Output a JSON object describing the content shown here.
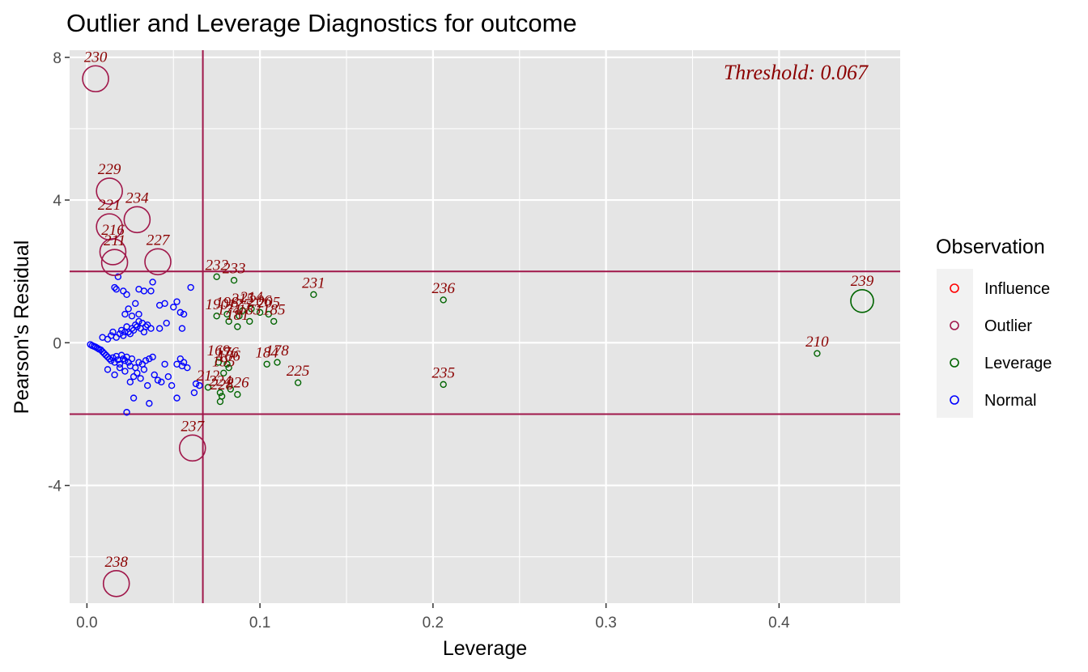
{
  "chart_data": {
    "type": "scatter",
    "title": "Outlier and Leverage Diagnostics for outcome",
    "xlabel": "Leverage",
    "ylabel": "Pearson's Residual",
    "xlim": [
      -0.01,
      0.47
    ],
    "ylim": [
      -7.3,
      8.2
    ],
    "x_ticks": [
      0.0,
      0.1,
      0.2,
      0.3,
      0.4
    ],
    "x_tick_labels": [
      "0.0",
      "0.1",
      "0.2",
      "0.3",
      "0.4"
    ],
    "y_ticks": [
      -4,
      0,
      4,
      8
    ],
    "y_tick_labels": [
      "-4",
      "0",
      "4",
      "8"
    ],
    "grid": true,
    "threshold": {
      "leverage": 0.067,
      "residual": 2,
      "label": "Threshold: 0.067"
    },
    "legend": {
      "title": "Observation",
      "placement": "right",
      "entries": [
        {
          "name": "Influence",
          "color": "#ff0000"
        },
        {
          "name": "Outlier",
          "color": "#a0174a"
        },
        {
          "name": "Leverage",
          "color": "#006400"
        },
        {
          "name": "Normal",
          "color": "#0000ff"
        }
      ]
    },
    "colors": {
      "panel": "#e5e5e5",
      "grid": "#ffffff",
      "threshold_line": "#a0174a",
      "label": "#8b0000"
    },
    "series": [
      {
        "name": "Outlier",
        "points": [
          {
            "x": 0.005,
            "y": 7.4,
            "label": "230"
          },
          {
            "x": 0.013,
            "y": 4.25,
            "label": "229"
          },
          {
            "x": 0.013,
            "y": 3.25,
            "label": "221"
          },
          {
            "x": 0.029,
            "y": 3.45,
            "label": "234"
          },
          {
            "x": 0.015,
            "y": 2.55,
            "label": "216"
          },
          {
            "x": 0.016,
            "y": 2.25,
            "label": "211"
          },
          {
            "x": 0.041,
            "y": 2.27,
            "label": "227"
          },
          {
            "x": 0.061,
            "y": -2.95,
            "label": "237"
          },
          {
            "x": 0.017,
            "y": -6.75,
            "label": "238"
          }
        ]
      },
      {
        "name": "Leverage",
        "points": [
          {
            "x": 0.075,
            "y": 1.85,
            "label": "232"
          },
          {
            "x": 0.085,
            "y": 1.75,
            "label": "233"
          },
          {
            "x": 0.131,
            "y": 1.35,
            "label": "231"
          },
          {
            "x": 0.206,
            "y": 1.2,
            "label": "236"
          },
          {
            "x": 0.448,
            "y": 1.17,
            "label": "239"
          },
          {
            "x": 0.075,
            "y": 0.75,
            "label": "190"
          },
          {
            "x": 0.081,
            "y": 0.8,
            "label": "198"
          },
          {
            "x": 0.088,
            "y": 0.75,
            "label": "175"
          },
          {
            "x": 0.09,
            "y": 0.9,
            "label": "215"
          },
          {
            "x": 0.095,
            "y": 0.95,
            "label": "214"
          },
          {
            "x": 0.1,
            "y": 0.85,
            "label": "206"
          },
          {
            "x": 0.105,
            "y": 0.8,
            "label": "205"
          },
          {
            "x": 0.108,
            "y": 0.6,
            "label": "185"
          },
          {
            "x": 0.082,
            "y": 0.6,
            "label": "174"
          },
          {
            "x": 0.087,
            "y": 0.45,
            "label": "181"
          },
          {
            "x": 0.094,
            "y": 0.6,
            "label": "183"
          },
          {
            "x": 0.422,
            "y": -0.3,
            "label": "210"
          },
          {
            "x": 0.076,
            "y": -0.55,
            "label": "169"
          },
          {
            "x": 0.081,
            "y": -0.6,
            "label": "176"
          },
          {
            "x": 0.079,
            "y": -0.85,
            "label": "195"
          },
          {
            "x": 0.082,
            "y": -0.7,
            "label": "186"
          },
          {
            "x": 0.104,
            "y": -0.6,
            "label": "184"
          },
          {
            "x": 0.11,
            "y": -0.55,
            "label": "178"
          },
          {
            "x": 0.122,
            "y": -1.12,
            "label": "225"
          },
          {
            "x": 0.206,
            "y": -1.17,
            "label": "235"
          },
          {
            "x": 0.07,
            "y": -1.25,
            "label": "212"
          },
          {
            "x": 0.077,
            "y": -1.4,
            "label": "224"
          },
          {
            "x": 0.078,
            "y": -1.5,
            "label": "228"
          },
          {
            "x": 0.087,
            "y": -1.45,
            "label": "226"
          },
          {
            "x": 0.077,
            "y": -1.65,
            "label": ""
          },
          {
            "x": 0.083,
            "y": -1.3,
            "label": ""
          }
        ]
      },
      {
        "name": "Normal",
        "points": [
          {
            "x": 0.002,
            "y": -0.05
          },
          {
            "x": 0.003,
            "y": -0.08
          },
          {
            "x": 0.004,
            "y": -0.1
          },
          {
            "x": 0.005,
            "y": -0.12
          },
          {
            "x": 0.006,
            "y": -0.15
          },
          {
            "x": 0.007,
            "y": -0.18
          },
          {
            "x": 0.008,
            "y": -0.2
          },
          {
            "x": 0.009,
            "y": -0.25
          },
          {
            "x": 0.01,
            "y": -0.3
          },
          {
            "x": 0.011,
            "y": -0.35
          },
          {
            "x": 0.012,
            "y": -0.4
          },
          {
            "x": 0.013,
            "y": -0.45
          },
          {
            "x": 0.014,
            "y": -0.5
          },
          {
            "x": 0.015,
            "y": -0.42
          },
          {
            "x": 0.016,
            "y": -0.55
          },
          {
            "x": 0.017,
            "y": -0.38
          },
          {
            "x": 0.018,
            "y": -0.48
          },
          {
            "x": 0.019,
            "y": -0.6
          },
          {
            "x": 0.02,
            "y": -0.35
          },
          {
            "x": 0.021,
            "y": -0.45
          },
          {
            "x": 0.022,
            "y": -0.5
          },
          {
            "x": 0.023,
            "y": -0.4
          },
          {
            "x": 0.024,
            "y": -0.55
          },
          {
            "x": 0.025,
            "y": -0.65
          },
          {
            "x": 0.026,
            "y": -0.45
          },
          {
            "x": 0.028,
            "y": -0.7
          },
          {
            "x": 0.03,
            "y": -0.55
          },
          {
            "x": 0.032,
            "y": -0.6
          },
          {
            "x": 0.034,
            "y": -0.5
          },
          {
            "x": 0.036,
            "y": -0.45
          },
          {
            "x": 0.038,
            "y": -0.4
          },
          {
            "x": 0.012,
            "y": -0.75
          },
          {
            "x": 0.016,
            "y": -0.9
          },
          {
            "x": 0.019,
            "y": -0.7
          },
          {
            "x": 0.022,
            "y": -0.8
          },
          {
            "x": 0.025,
            "y": -1.1
          },
          {
            "x": 0.027,
            "y": -0.95
          },
          {
            "x": 0.029,
            "y": -0.85
          },
          {
            "x": 0.031,
            "y": -1.0
          },
          {
            "x": 0.033,
            "y": -0.75
          },
          {
            "x": 0.035,
            "y": -1.2
          },
          {
            "x": 0.039,
            "y": -0.9
          },
          {
            "x": 0.041,
            "y": -1.05
          },
          {
            "x": 0.043,
            "y": -1.1
          },
          {
            "x": 0.045,
            "y": -0.6
          },
          {
            "x": 0.047,
            "y": -0.95
          },
          {
            "x": 0.049,
            "y": -1.2
          },
          {
            "x": 0.052,
            "y": -0.6
          },
          {
            "x": 0.054,
            "y": -0.45
          },
          {
            "x": 0.055,
            "y": -0.65
          },
          {
            "x": 0.056,
            "y": -0.55
          },
          {
            "x": 0.058,
            "y": -0.7
          },
          {
            "x": 0.063,
            "y": -1.15
          },
          {
            "x": 0.065,
            "y": -1.2
          },
          {
            "x": 0.062,
            "y": -1.4
          },
          {
            "x": 0.052,
            "y": -1.55
          },
          {
            "x": 0.036,
            "y": -1.7
          },
          {
            "x": 0.027,
            "y": -1.55
          },
          {
            "x": 0.023,
            "y": -1.95
          },
          {
            "x": 0.009,
            "y": 0.15
          },
          {
            "x": 0.012,
            "y": 0.1
          },
          {
            "x": 0.014,
            "y": 0.2
          },
          {
            "x": 0.015,
            "y": 0.3
          },
          {
            "x": 0.017,
            "y": 0.15
          },
          {
            "x": 0.019,
            "y": 0.25
          },
          {
            "x": 0.02,
            "y": 0.35
          },
          {
            "x": 0.021,
            "y": 0.2
          },
          {
            "x": 0.022,
            "y": 0.3
          },
          {
            "x": 0.023,
            "y": 0.45
          },
          {
            "x": 0.024,
            "y": 0.3
          },
          {
            "x": 0.025,
            "y": 0.25
          },
          {
            "x": 0.026,
            "y": 0.4
          },
          {
            "x": 0.027,
            "y": 0.35
          },
          {
            "x": 0.028,
            "y": 0.5
          },
          {
            "x": 0.029,
            "y": 0.45
          },
          {
            "x": 0.03,
            "y": 0.6
          },
          {
            "x": 0.031,
            "y": 0.4
          },
          {
            "x": 0.032,
            "y": 0.55
          },
          {
            "x": 0.033,
            "y": 0.3
          },
          {
            "x": 0.034,
            "y": 0.45
          },
          {
            "x": 0.035,
            "y": 0.5
          },
          {
            "x": 0.037,
            "y": 0.4
          },
          {
            "x": 0.022,
            "y": 0.8
          },
          {
            "x": 0.024,
            "y": 0.95
          },
          {
            "x": 0.026,
            "y": 0.75
          },
          {
            "x": 0.028,
            "y": 1.1
          },
          {
            "x": 0.03,
            "y": 0.8
          },
          {
            "x": 0.017,
            "y": 1.5
          },
          {
            "x": 0.018,
            "y": 1.85
          },
          {
            "x": 0.016,
            "y": 1.55
          },
          {
            "x": 0.021,
            "y": 1.45
          },
          {
            "x": 0.023,
            "y": 1.35
          },
          {
            "x": 0.03,
            "y": 1.5
          },
          {
            "x": 0.033,
            "y": 1.45
          },
          {
            "x": 0.037,
            "y": 1.45
          },
          {
            "x": 0.038,
            "y": 1.7
          },
          {
            "x": 0.042,
            "y": 1.05
          },
          {
            "x": 0.045,
            "y": 1.1
          },
          {
            "x": 0.05,
            "y": 1.0
          },
          {
            "x": 0.052,
            "y": 1.15
          },
          {
            "x": 0.054,
            "y": 0.85
          },
          {
            "x": 0.056,
            "y": 0.8
          },
          {
            "x": 0.06,
            "y": 1.55
          },
          {
            "x": 0.046,
            "y": 0.55
          },
          {
            "x": 0.042,
            "y": 0.4
          },
          {
            "x": 0.055,
            "y": 0.4
          }
        ]
      }
    ]
  }
}
